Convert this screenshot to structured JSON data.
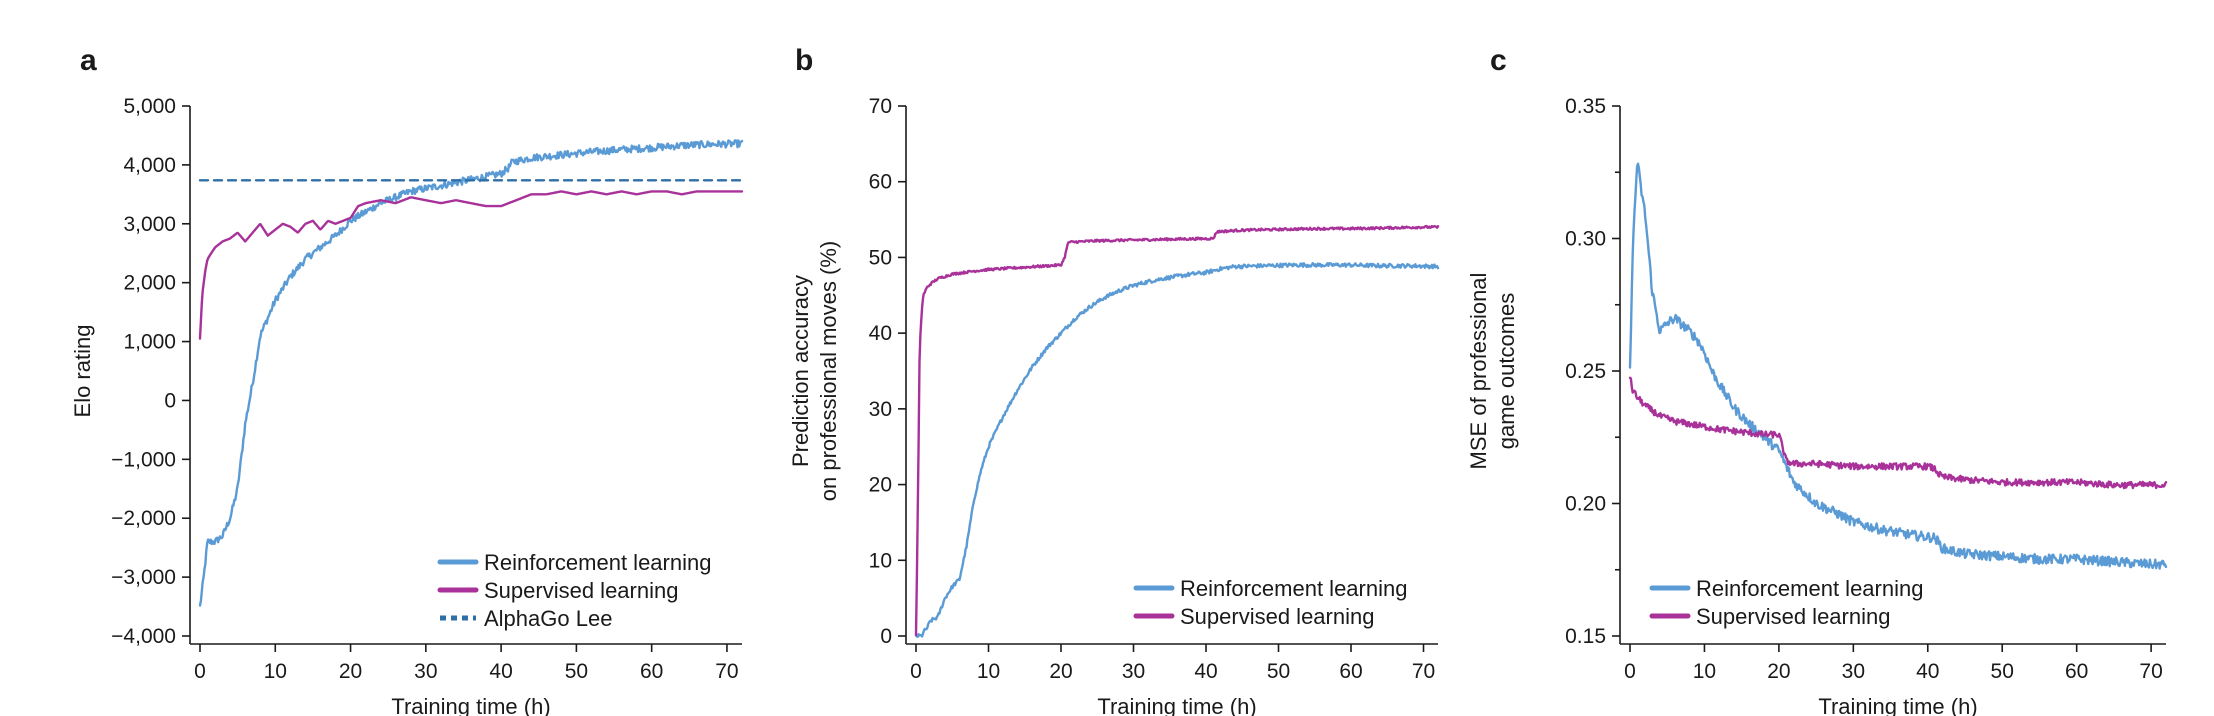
{
  "colors": {
    "reinforcement": "#5b9bd5",
    "supervised": "#a8329a",
    "alphago": "#2e6fa8"
  },
  "chart_data": [
    {
      "panel": "a",
      "type": "line",
      "xlabel": "Training time (h)",
      "ylabel": "Elo rating",
      "xlim": [
        0,
        72
      ],
      "ylim": [
        -4000,
        5000
      ],
      "xticks": [
        "0",
        "10",
        "20",
        "30",
        "40",
        "50",
        "60",
        "70"
      ],
      "yticks": [
        "5,000",
        "4,000",
        "3,000",
        "2,000",
        "1,000",
        "0",
        "−1,000",
        "−2,000",
        "−3,000",
        "−4,000"
      ],
      "legend_position": "bottom-right",
      "series": [
        {
          "name": "Reinforcement learning",
          "color_key": "reinforcement",
          "noise": 60,
          "x": [
            0,
            0.5,
            1,
            2,
            3,
            4,
            5,
            6,
            7,
            8,
            9,
            10,
            12,
            14,
            16,
            18,
            20,
            22,
            24,
            26,
            28,
            30,
            32,
            34,
            36,
            38,
            40,
            41,
            41.5,
            44,
            48,
            52,
            56,
            60,
            64,
            68,
            72
          ],
          "y": [
            -3500,
            -3000,
            -2400,
            -2400,
            -2300,
            -2000,
            -1500,
            -400,
            300,
            1100,
            1400,
            1700,
            2100,
            2400,
            2600,
            2800,
            3050,
            3200,
            3350,
            3450,
            3550,
            3600,
            3650,
            3700,
            3750,
            3800,
            3850,
            3950,
            4050,
            4120,
            4170,
            4220,
            4260,
            4290,
            4330,
            4350,
            4360
          ]
        },
        {
          "name": "Supervised learning",
          "color_key": "supervised",
          "noise": 0,
          "x": [
            0,
            0.3,
            0.7,
            1,
            2,
            3,
            4,
            5,
            6,
            7,
            8,
            9,
            10,
            11,
            12,
            13,
            14,
            15,
            16,
            17,
            18,
            19,
            20,
            21,
            22,
            24,
            26,
            28,
            30,
            32,
            34,
            36,
            38,
            40,
            42,
            44,
            46,
            48,
            50,
            52,
            54,
            56,
            58,
            60,
            62,
            64,
            66,
            68,
            70,
            72
          ],
          "y": [
            1050,
            1800,
            2200,
            2400,
            2600,
            2700,
            2750,
            2850,
            2700,
            2850,
            3000,
            2800,
            2900,
            3000,
            2950,
            2850,
            3000,
            3050,
            2900,
            3050,
            3000,
            3050,
            3100,
            3300,
            3350,
            3400,
            3350,
            3450,
            3400,
            3350,
            3400,
            3350,
            3300,
            3300,
            3400,
            3500,
            3500,
            3550,
            3500,
            3550,
            3500,
            3550,
            3500,
            3550,
            3550,
            3500,
            3550,
            3550,
            3550,
            3550
          ]
        },
        {
          "name": "AlphaGo Lee",
          "color_key": "alphago",
          "dashed": true,
          "x": [
            0,
            72
          ],
          "y": [
            3739,
            3739
          ]
        }
      ]
    },
    {
      "panel": "b",
      "type": "line",
      "xlabel": "Training time (h)",
      "ylabel_lines": [
        "Prediction accuracy",
        "on professional moves (%)"
      ],
      "xlim": [
        0,
        72
      ],
      "ylim": [
        0,
        70
      ],
      "xticks": [
        "0",
        "10",
        "20",
        "30",
        "40",
        "50",
        "60",
        "70"
      ],
      "yticks": [
        "70",
        "60",
        "50",
        "40",
        "30",
        "20",
        "10",
        "0"
      ],
      "legend_position": "bottom-right",
      "series": [
        {
          "name": "Reinforcement learning",
          "color_key": "reinforcement",
          "noise": 0.25,
          "x": [
            0,
            0.8,
            1,
            1.5,
            2,
            3,
            4,
            5,
            6,
            7,
            8,
            9,
            10,
            12,
            14,
            16,
            18,
            20,
            22,
            24,
            26,
            28,
            30,
            32,
            34,
            36,
            38,
            40,
            42,
            44,
            48,
            52,
            56,
            60,
            64,
            68,
            72
          ],
          "y": [
            0,
            0,
            0.5,
            1,
            2,
            2.5,
            5,
            6.5,
            7.5,
            12,
            18,
            22,
            25,
            29,
            32.5,
            35.5,
            38,
            40,
            42,
            43.5,
            44.7,
            45.6,
            46.3,
            46.8,
            47.2,
            47.5,
            47.8,
            48,
            48.5,
            48.8,
            48.9,
            49,
            49,
            49,
            48.9,
            48.9,
            48.8
          ]
        },
        {
          "name": "Supervised learning",
          "color_key": "supervised",
          "noise": 0.15,
          "x": [
            0,
            0.3,
            0.5,
            0.8,
            1,
            1.5,
            2,
            3,
            5,
            8,
            10,
            15,
            20,
            20.5,
            21,
            25,
            30,
            35,
            41,
            41.5,
            45,
            50,
            55,
            60,
            65,
            70,
            72
          ],
          "y": [
            0,
            20,
            38,
            43,
            45,
            46,
            46.5,
            47.2,
            47.8,
            48.2,
            48.4,
            48.7,
            49,
            50,
            52,
            52.2,
            52.3,
            52.4,
            52.5,
            53.4,
            53.6,
            53.7,
            53.8,
            53.8,
            53.9,
            54,
            54
          ]
        }
      ]
    },
    {
      "panel": "c",
      "type": "line",
      "xlabel": "Training time (h)",
      "ylabel_lines": [
        "MSE of professional",
        "game outcomes"
      ],
      "xlim": [
        0,
        72
      ],
      "ylim": [
        0.15,
        0.35
      ],
      "xticks": [
        "0",
        "10",
        "20",
        "30",
        "40",
        "50",
        "60",
        "70"
      ],
      "yticks": [
        "0.35",
        "0.30",
        "0.25",
        "0.20",
        "0.15"
      ],
      "legend_position": "bottom-left",
      "series": [
        {
          "name": "Reinforcement learning",
          "color_key": "reinforcement",
          "noise": 0.0018,
          "x": [
            0,
            0.3,
            0.6,
            1,
            1.4,
            2,
            3,
            4,
            5,
            6,
            8,
            9,
            10,
            11,
            12,
            14,
            16,
            18,
            20,
            22,
            25,
            28,
            30,
            34,
            38,
            41,
            42,
            45,
            50,
            55,
            60,
            65,
            70,
            72
          ],
          "y": [
            0.25,
            0.29,
            0.31,
            0.33,
            0.32,
            0.31,
            0.28,
            0.265,
            0.268,
            0.27,
            0.265,
            0.262,
            0.257,
            0.25,
            0.245,
            0.236,
            0.23,
            0.225,
            0.22,
            0.208,
            0.2,
            0.196,
            0.193,
            0.19,
            0.188,
            0.187,
            0.183,
            0.181,
            0.18,
            0.179,
            0.179,
            0.178,
            0.177,
            0.177
          ]
        },
        {
          "name": "Supervised learning",
          "color_key": "supervised",
          "noise": 0.0012,
          "x": [
            0,
            0.3,
            1,
            2,
            4,
            6,
            8,
            10,
            12,
            15,
            18,
            20,
            20.5,
            21,
            22,
            25,
            30,
            35,
            40,
            41,
            41.5,
            42,
            45,
            50,
            55,
            60,
            65,
            70,
            72
          ],
          "y": [
            0.248,
            0.243,
            0.24,
            0.237,
            0.233,
            0.231,
            0.23,
            0.229,
            0.228,
            0.227,
            0.226,
            0.226,
            0.221,
            0.216,
            0.215,
            0.215,
            0.214,
            0.214,
            0.214,
            0.213,
            0.211,
            0.21,
            0.209,
            0.208,
            0.208,
            0.208,
            0.207,
            0.207,
            0.207
          ]
        }
      ]
    }
  ]
}
